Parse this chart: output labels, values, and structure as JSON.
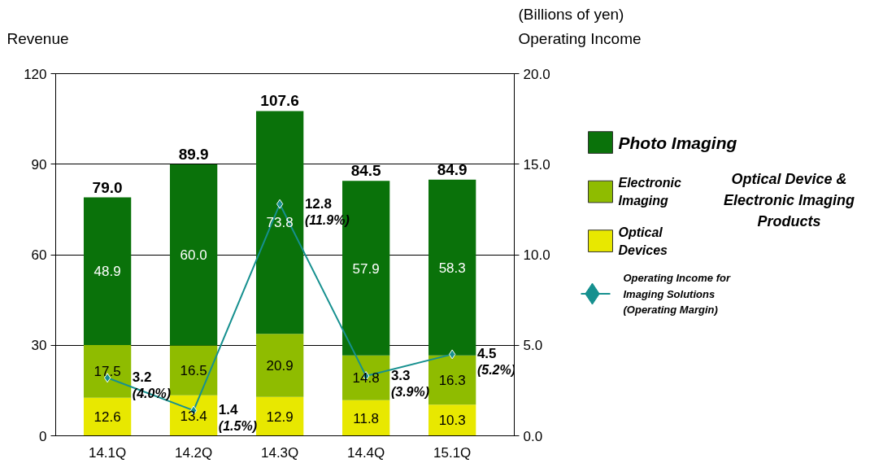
{
  "chart_data": {
    "type": "bar",
    "stacked": true,
    "ylabel": "Revenue",
    "y2label": "Operating Income",
    "categories": [
      "14.1Q",
      "14.2Q",
      "14.3Q",
      "14.4Q",
      "15.1Q"
    ],
    "series": [
      {
        "name": "Optical Devices",
        "color": "#e8e800",
        "values": [
          12.6,
          13.4,
          12.9,
          11.8,
          10.3
        ],
        "value_labels": [
          "12.6",
          "13.4",
          "12.9",
          "11.8",
          "10.3"
        ]
      },
      {
        "name": "Electronic Imaging",
        "color": "#8fbc00",
        "values": [
          17.5,
          16.5,
          20.9,
          14.8,
          16.3
        ],
        "value_labels": [
          "17.5",
          "16.5",
          "20.9",
          "14.8",
          "16.3"
        ]
      },
      {
        "name": "Photo Imaging",
        "color": "#0a720a",
        "values": [
          48.9,
          60.0,
          73.8,
          57.9,
          58.3
        ],
        "value_labels": [
          "48.9",
          "60.0",
          "73.8",
          "57.9",
          "58.3"
        ]
      },
      {
        "name": "Operating Income for Imaging Solutions (Operating Margin)",
        "type": "line",
        "axis": "y2",
        "color": "#16908f",
        "marker": "diamond",
        "values": [
          3.2,
          1.4,
          12.8,
          3.3,
          4.5
        ],
        "value_labels": [
          "3.2\n(4.0%)",
          "1.4\n(1.5%)",
          "12.8\n(11.9%)",
          "3.3\n(3.9%)",
          "4.5\n(5.2%)"
        ]
      }
    ],
    "totals": [
      "79.0",
      "89.9",
      "107.6",
      "84.5",
      "84.9"
    ],
    "ylim": [
      0,
      120
    ],
    "yticks": [
      0,
      30,
      60,
      90,
      120
    ],
    "y2lim": [
      0,
      20
    ],
    "y2ticks": [
      {
        "value": 0,
        "label": "0.0"
      },
      {
        "value": 5,
        "label": "5.0"
      },
      {
        "value": 10,
        "label": "10.0"
      },
      {
        "value": 15,
        "label": "15.0"
      },
      {
        "value": 20,
        "label": "20.0"
      }
    ],
    "grid": "y",
    "legend": "right",
    "annotations": [
      "(Billions of yen)",
      "Optical Device & Electronic Imaging Products"
    ]
  }
}
